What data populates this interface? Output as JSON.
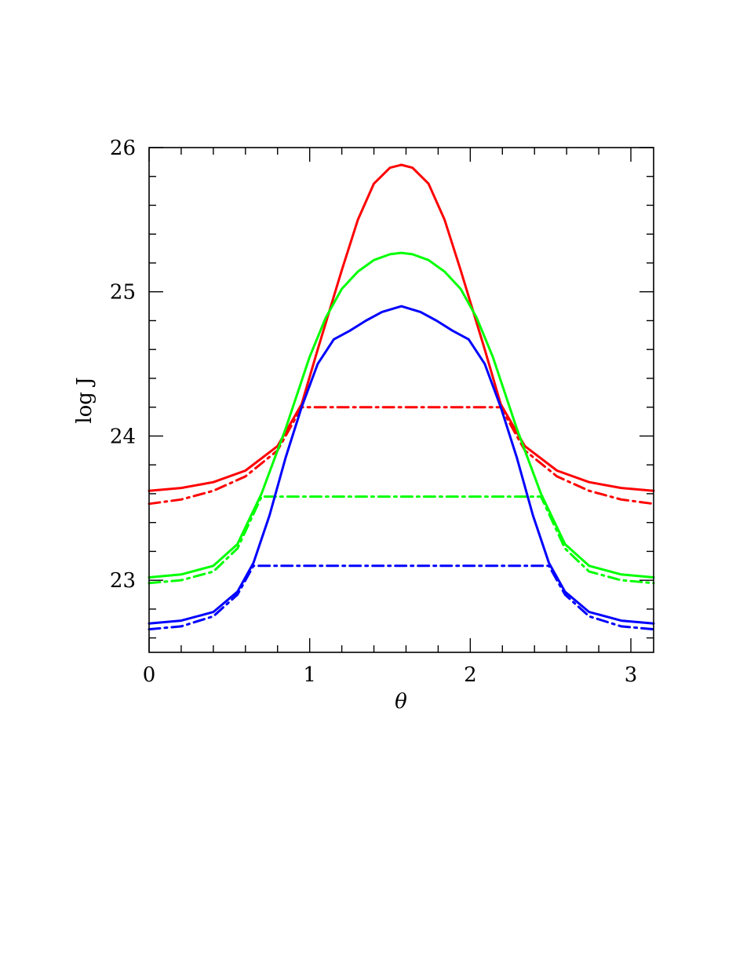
{
  "chart_data": {
    "type": "line",
    "title": "",
    "xlabel": "θ",
    "ylabel": "log J",
    "xlim": [
      0,
      3.1416
    ],
    "ylim": [
      22.5,
      26.0
    ],
    "x_ticks": [
      "0",
      "1",
      "2",
      "3"
    ],
    "y_ticks": [
      "23",
      "24",
      "25",
      "26"
    ],
    "grid": false,
    "legend": "none",
    "series": [
      {
        "color": "#ff0000",
        "style": "solid",
        "points": [
          [
            0.0,
            23.62
          ],
          [
            0.2,
            23.64
          ],
          [
            0.4,
            23.68
          ],
          [
            0.6,
            23.76
          ],
          [
            0.8,
            23.93
          ],
          [
            0.95,
            24.22
          ],
          [
            1.05,
            24.6
          ],
          [
            1.2,
            25.15
          ],
          [
            1.3,
            25.5
          ],
          [
            1.4,
            25.75
          ],
          [
            1.5,
            25.86
          ],
          [
            1.571,
            25.88
          ],
          [
            1.64,
            25.86
          ],
          [
            1.74,
            25.75
          ],
          [
            1.84,
            25.5
          ],
          [
            1.94,
            25.15
          ],
          [
            2.09,
            24.6
          ],
          [
            2.19,
            24.22
          ],
          [
            2.34,
            23.93
          ],
          [
            2.54,
            23.76
          ],
          [
            2.74,
            23.68
          ],
          [
            2.94,
            23.64
          ],
          [
            3.1416,
            23.62
          ]
        ]
      },
      {
        "color": "#ff0000",
        "style": "dashdot",
        "points": [
          [
            0.0,
            23.53
          ],
          [
            0.2,
            23.56
          ],
          [
            0.4,
            23.62
          ],
          [
            0.6,
            23.72
          ],
          [
            0.8,
            23.9
          ],
          [
            0.95,
            24.2
          ],
          [
            2.19,
            24.2
          ],
          [
            2.34,
            23.9
          ],
          [
            2.54,
            23.72
          ],
          [
            2.74,
            23.62
          ],
          [
            2.94,
            23.56
          ],
          [
            3.1416,
            23.53
          ]
        ]
      },
      {
        "color": "#00ff00",
        "style": "solid",
        "points": [
          [
            0.0,
            23.02
          ],
          [
            0.2,
            23.04
          ],
          [
            0.4,
            23.1
          ],
          [
            0.55,
            23.25
          ],
          [
            0.7,
            23.6
          ],
          [
            0.85,
            24.05
          ],
          [
            1.0,
            24.55
          ],
          [
            1.1,
            24.82
          ],
          [
            1.2,
            25.02
          ],
          [
            1.3,
            25.14
          ],
          [
            1.4,
            25.22
          ],
          [
            1.5,
            25.26
          ],
          [
            1.571,
            25.27
          ],
          [
            1.64,
            25.26
          ],
          [
            1.74,
            25.22
          ],
          [
            1.84,
            25.14
          ],
          [
            1.94,
            25.02
          ],
          [
            2.04,
            24.82
          ],
          [
            2.14,
            24.55
          ],
          [
            2.29,
            24.05
          ],
          [
            2.44,
            23.6
          ],
          [
            2.59,
            23.25
          ],
          [
            2.74,
            23.1
          ],
          [
            2.94,
            23.04
          ],
          [
            3.1416,
            23.02
          ]
        ]
      },
      {
        "color": "#00ff00",
        "style": "dashdot",
        "points": [
          [
            0.0,
            22.98
          ],
          [
            0.2,
            23.0
          ],
          [
            0.4,
            23.06
          ],
          [
            0.55,
            23.22
          ],
          [
            0.7,
            23.58
          ],
          [
            2.44,
            23.58
          ],
          [
            2.59,
            23.22
          ],
          [
            2.74,
            23.06
          ],
          [
            2.94,
            23.0
          ],
          [
            3.1416,
            22.98
          ]
        ]
      },
      {
        "color": "#0000ff",
        "style": "solid",
        "points": [
          [
            0.0,
            22.7
          ],
          [
            0.2,
            22.72
          ],
          [
            0.4,
            22.78
          ],
          [
            0.55,
            22.92
          ],
          [
            0.65,
            23.12
          ],
          [
            0.75,
            23.45
          ],
          [
            0.85,
            23.85
          ],
          [
            0.95,
            24.2
          ],
          [
            1.05,
            24.5
          ],
          [
            1.15,
            24.67
          ],
          [
            1.25,
            24.73
          ],
          [
            1.35,
            24.8
          ],
          [
            1.45,
            24.86
          ],
          [
            1.571,
            24.9
          ],
          [
            1.69,
            24.86
          ],
          [
            1.79,
            24.8
          ],
          [
            1.89,
            24.73
          ],
          [
            1.99,
            24.67
          ],
          [
            2.09,
            24.5
          ],
          [
            2.19,
            24.2
          ],
          [
            2.29,
            23.85
          ],
          [
            2.39,
            23.45
          ],
          [
            2.49,
            23.12
          ],
          [
            2.59,
            22.92
          ],
          [
            2.74,
            22.78
          ],
          [
            2.94,
            22.72
          ],
          [
            3.1416,
            22.7
          ]
        ]
      },
      {
        "color": "#0000ff",
        "style": "dashdot",
        "points": [
          [
            0.0,
            22.66
          ],
          [
            0.2,
            22.68
          ],
          [
            0.4,
            22.75
          ],
          [
            0.55,
            22.9
          ],
          [
            0.65,
            23.1
          ],
          [
            2.49,
            23.1
          ],
          [
            2.59,
            22.9
          ],
          [
            2.74,
            22.75
          ],
          [
            2.94,
            22.68
          ],
          [
            3.1416,
            22.66
          ]
        ]
      }
    ]
  }
}
